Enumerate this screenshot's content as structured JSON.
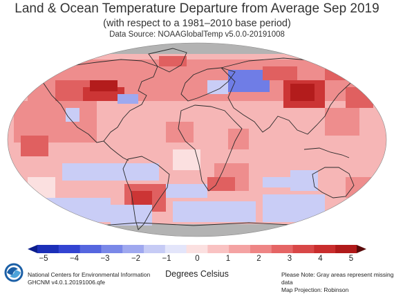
{
  "header": {
    "title": "Land & Ocean Temperature Departure from Average Sep 2019",
    "subtitle": "(with respect to a 1981–2010 base period)",
    "source": "Data Source: NOAAGlobalTemp v5.0.0-20191008"
  },
  "colorbar": {
    "ticks": [
      "−5",
      "−4",
      "−3",
      "−2",
      "−1",
      "0",
      "1",
      "2",
      "3",
      "4",
      "5"
    ],
    "unit_label": "Degrees Celsius",
    "colors": [
      "#0b1d8c",
      "#1c2fb8",
      "#3344d2",
      "#5566df",
      "#7a88e8",
      "#9fa8ef",
      "#c6cbf5",
      "#e3e5fa",
      "#fbe0e0",
      "#f9c2c2",
      "#f4a3a3",
      "#ee8585",
      "#e56565",
      "#d84747",
      "#c92d2d",
      "#b01a1a",
      "#5a0a0a"
    ]
  },
  "footer": {
    "org_line1": "National Centers for Environmental Information",
    "org_line2": "GHCNM v4.0.1.20191006.qfe",
    "note_line1": "Please Note: Gray areas represent missing data",
    "note_line2": "Map Projection: Robinson"
  },
  "map": {
    "projection": "Robinson",
    "missing_color": "#b3b3b3",
    "anomaly_colors": {
      "very_cold": "#6f7de6",
      "cold": "#9ea9ef",
      "cool": "#c9cdf6",
      "near_zero": "#fbe0e0",
      "warm": "#f6b6b6",
      "warmer": "#ee8d8d",
      "hot": "#e06060",
      "very_hot": "#cc3535",
      "extreme": "#b31c1c"
    },
    "land_outline_color": "#2a2a2a"
  },
  "logo": {
    "icon": "noaa-logo-icon"
  }
}
